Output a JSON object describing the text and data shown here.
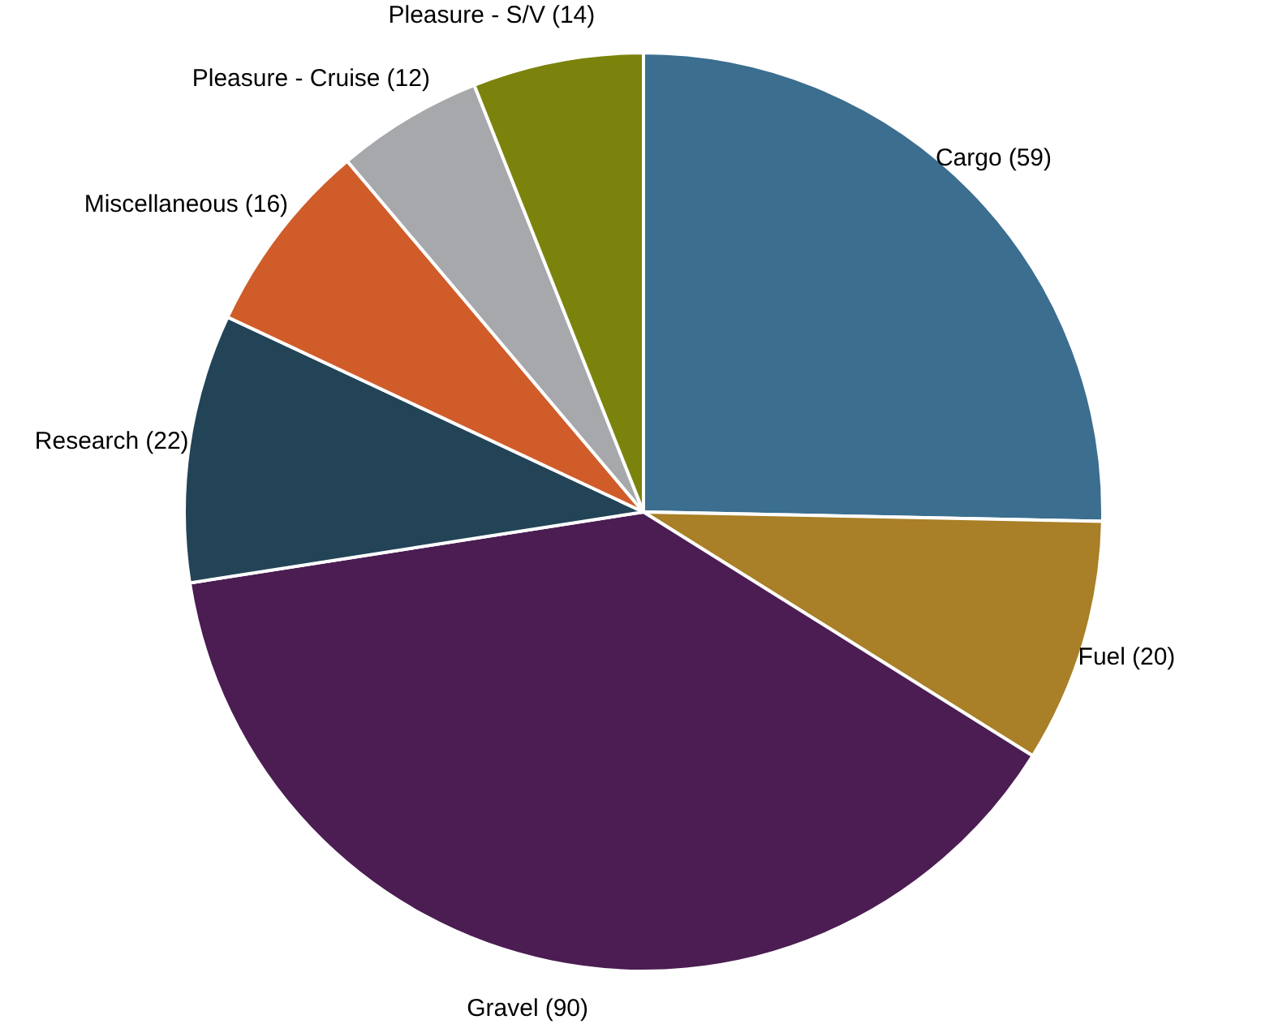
{
  "chart_data": {
    "type": "pie",
    "categories": [
      "Cargo",
      "Fuel",
      "Gravel",
      "Research",
      "Miscellaneous",
      "Pleasure - Cruise",
      "Pleasure - S/V"
    ],
    "values": [
      59,
      20,
      90,
      22,
      16,
      12,
      14
    ],
    "value_labels": [
      "(59)",
      "(20)",
      "(90)",
      "(22)",
      "(16)",
      "(12)",
      "(14)"
    ],
    "colors": [
      "#3b6e8f",
      "#a97f27",
      "#4b1d52",
      "#234457",
      "#d05c2a",
      "#a7a8ab",
      "#7b830c"
    ],
    "legend": false
  }
}
